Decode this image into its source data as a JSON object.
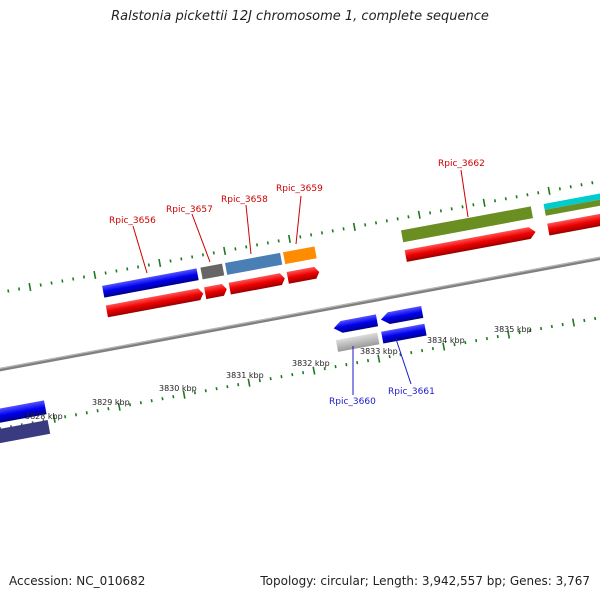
{
  "title": "Ralstonia pickettii 12J chromosome 1, complete sequence",
  "footer": {
    "accession": "Accession: NC_010682",
    "summary": "Topology: circular; Length: 3,942,557 bp; Genes: 3,767"
  },
  "ticks": [
    "3828 kbp",
    "3829 kbp",
    "3830 kbp",
    "3831 kbp",
    "3832 kbp",
    "3833 kbp",
    "3834 kbp",
    "3835 kbp"
  ],
  "genes_top": [
    {
      "label": "Rpic_3656",
      "color": "#cc0000"
    },
    {
      "label": "Rpic_3657",
      "color": "#cc0000"
    },
    {
      "label": "Rpic_3658",
      "color": "#cc0000"
    },
    {
      "label": "Rpic_3659",
      "color": "#cc0000"
    },
    {
      "label": "Rpic_3662",
      "color": "#cc0000"
    }
  ],
  "genes_bottom": [
    {
      "label": "Rpic_3660",
      "color": "#1a1acc"
    },
    {
      "label": "Rpic_3661",
      "color": "#1a1acc"
    }
  ],
  "colors": {
    "forward": "#ff0000",
    "reverse": "#0000ee",
    "tick": "#1f7a1f",
    "backbone": "#888888"
  }
}
